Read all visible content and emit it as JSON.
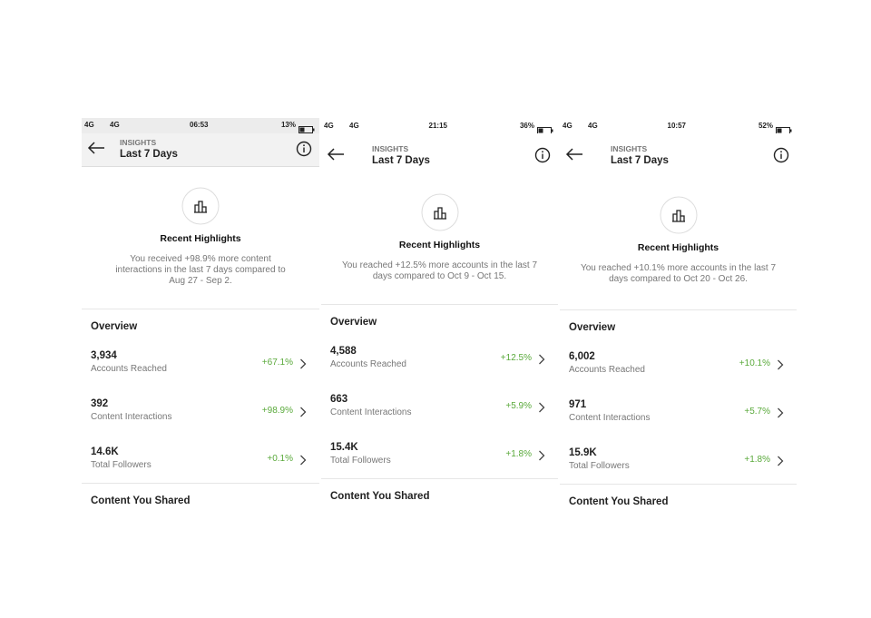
{
  "screens": [
    {
      "status": {
        "network": [
          "4G",
          "4G"
        ],
        "time": "06:53",
        "battery": "13%"
      },
      "header": {
        "section": "INSIGHTS",
        "title": "Last 7 Days"
      },
      "highlights": {
        "title": "Recent Highlights",
        "text": "You received +98.9% more content interactions in the last 7 days compared to Aug 27 - Sep 2."
      },
      "overview": {
        "title": "Overview",
        "items": [
          {
            "value": "3,934",
            "label": "Accounts Reached",
            "change": "+67.1%"
          },
          {
            "value": "392",
            "label": "Content Interactions",
            "change": "+98.9%"
          },
          {
            "value": "14.6K",
            "label": "Total Followers",
            "change": "+0.1%"
          }
        ]
      },
      "content_title": "Content You Shared"
    },
    {
      "status": {
        "network": [
          "4G",
          "4G"
        ],
        "time": "21:15",
        "battery": "36%"
      },
      "header": {
        "section": "INSIGHTS",
        "title": "Last 7 Days"
      },
      "highlights": {
        "title": "Recent Highlights",
        "text": "You reached +12.5% more accounts in the last 7 days compared to Oct 9 - Oct 15."
      },
      "overview": {
        "title": "Overview",
        "items": [
          {
            "value": "4,588",
            "label": "Accounts Reached",
            "change": "+12.5%"
          },
          {
            "value": "663",
            "label": "Content Interactions",
            "change": "+5.9%"
          },
          {
            "value": "15.4K",
            "label": "Total Followers",
            "change": "+1.8%"
          }
        ]
      },
      "content_title": "Content You Shared"
    },
    {
      "status": {
        "network": [
          "4G",
          "4G"
        ],
        "time": "10:57",
        "battery": "52%"
      },
      "header": {
        "section": "INSIGHTS",
        "title": "Last 7 Days"
      },
      "highlights": {
        "title": "Recent Highlights",
        "text": "You reached +10.1% more accounts in the last 7 days compared to Oct 20 - Oct 26."
      },
      "overview": {
        "title": "Overview",
        "items": [
          {
            "value": "6,002",
            "label": "Accounts Reached",
            "change": "+10.1%"
          },
          {
            "value": "971",
            "label": "Content Interactions",
            "change": "+5.7%"
          },
          {
            "value": "15.9K",
            "label": "Total Followers",
            "change": "+1.8%"
          }
        ]
      },
      "content_title": "Content You Shared"
    }
  ]
}
